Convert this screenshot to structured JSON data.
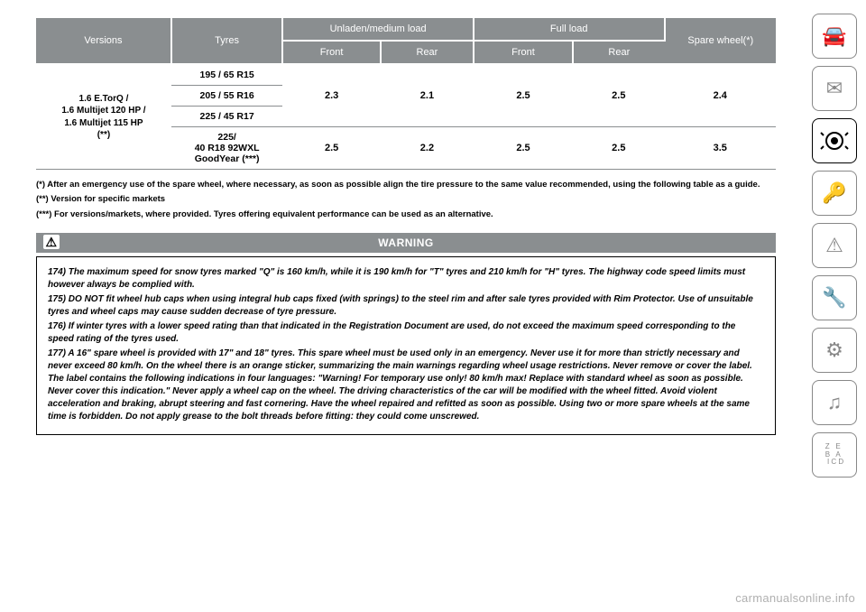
{
  "table": {
    "head": {
      "versions": "Versions",
      "tyres": "Tyres",
      "unladen": "Unladen/medium load",
      "full": "Full load",
      "spare": "Spare wheel(*)",
      "front": "Front",
      "rear": "Rear"
    },
    "version_label": "1.6 E.TorQ /\n1.6 Multijet 120 HP /\n1.6 Multijet 115 HP\n(**)",
    "rows": [
      {
        "tyre": "195 / 65 R15",
        "f1": "",
        "r1": "",
        "f2": "",
        "r2": "",
        "sp": ""
      },
      {
        "tyre": "205 / 55 R16",
        "f1": "2.3",
        "r1": "2.1",
        "f2": "2.5",
        "r2": "2.5",
        "sp": "2.4"
      },
      {
        "tyre": "225 / 45 R17",
        "f1": "",
        "r1": "",
        "f2": "",
        "r2": "",
        "sp": ""
      },
      {
        "tyre": "225/\n40 R18 92WXL\nGoodYear (***)",
        "f1": "2.5",
        "r1": "2.2",
        "f2": "2.5",
        "r2": "2.5",
        "sp": "3.5"
      }
    ]
  },
  "footnotes": {
    "a": "(*) After an emergency use of the spare wheel, where necessary, as soon as possible align the tire pressure to the same value recommended, using the following table as a guide.",
    "b": "(**) Version for specific markets",
    "c": "(***) For versions/markets, where provided. Tyres offering equivalent performance can be used as an alternative."
  },
  "warning": {
    "title": "WARNING",
    "p1": "174) The maximum speed for snow tyres marked \"Q\" is 160 km/h, while it is 190 km/h for \"T\" tyres and 210 km/h for \"H\" tyres. The highway code speed limits must however always be complied with.",
    "p2": "175) DO NOT fit wheel hub caps when using integral hub caps fixed (with springs) to the steel rim and after sale tyres provided with Rim Protector. Use of unsuitable tyres and wheel caps may cause sudden decrease of tyre pressure.",
    "p3": "176) If winter tyres with a lower speed rating than that indicated in the Registration Document are used, do not exceed the maximum speed corresponding to the speed rating of the tyres used.",
    "p4": "177) A 16\" spare wheel is provided with 17\" and 18\" tyres. This spare wheel must be used only in an emergency. Never use it for more than strictly necessary and never exceed 80 km/h. On the wheel there is an orange sticker, summarizing the main warnings regarding wheel usage restrictions. Never remove or cover the label. The label contains the following indications in four languages: \"Warning! For temporary use only! 80 km/h max! Replace with standard wheel as soon as possible. Never cover this indication.\" Never apply a wheel cap on the wheel. The driving characteristics of the car will be modified with the wheel fitted. Avoid violent acceleration and braking, abrupt steering and fast cornering. Have the wheel repaired and refitted as soon as possible. Using two or more spare wheels at the same time is forbidden. Do not apply grease to the bolt threads before fitting: they could come unscrewed."
  },
  "watermark": "carmanualsonline.info",
  "sidebar": [
    "🚗ℹ",
    "💡✉",
    "👤🛡",
    "🔑🛞",
    "🚘⚠",
    "🚗🔧",
    "📋⚙",
    "📶🎵",
    "Z E\nB A\nI C D"
  ]
}
